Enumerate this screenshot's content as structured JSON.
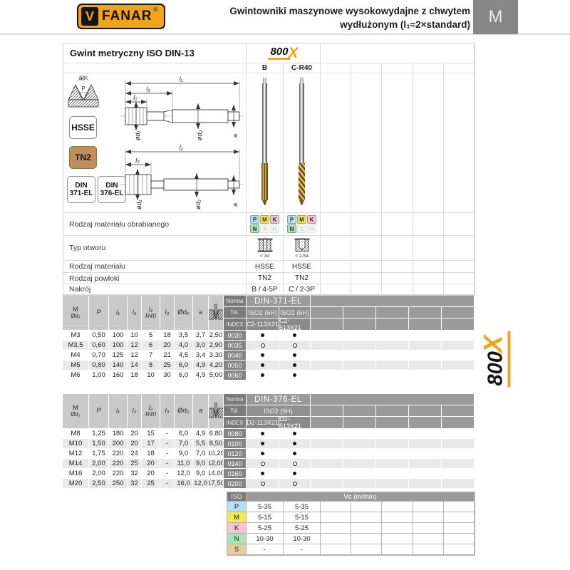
{
  "header": {
    "brand": "FANAR",
    "brand_v": "V",
    "registered": "®",
    "title_line1": "Gwintowniki maszynowe wysokowydajne z chwytem",
    "title_line2": "wydłużonym (l₁≈2×standard)",
    "section_tab": "M"
  },
  "brand_800x": {
    "num": "800",
    "x": "X",
    "accent_color": "#f2a31c"
  },
  "top": {
    "title": "Gwint metryczny ISO DIN-13",
    "col_b": "B",
    "col_c": "C-R40",
    "profile": {
      "angle": "60°",
      "p": "P"
    },
    "left_badges": {
      "material": "HSSE",
      "coating": "TN2",
      "coating_color": "#bf8f5b",
      "din1_l1": "DIN",
      "din1_l2": "371-EL",
      "din2_l1": "DIN",
      "din2_l2": "376-EL"
    },
    "drawing_dims": {
      "l1": "l₁",
      "l2": "l₂",
      "l3": "l₃",
      "d1": "ød₁",
      "d2": "ød₂",
      "a": "a"
    },
    "rows": {
      "material_groups_label": "Rodzaj materiału obrabianego",
      "hole_type_label": "Typ otworu",
      "material_label": "Rodzaj materiału",
      "coating_label": "Rodzaj powłoki",
      "chamfer_label": "Nakrój",
      "material_values": [
        "HSSE",
        "HSSE"
      ],
      "coating_values": [
        "TN2",
        "TN2"
      ],
      "chamfer_values": [
        "B / 4-5P",
        "C / 2-3P"
      ],
      "hole_captions": [
        "< 3d",
        "< 2,5d"
      ]
    },
    "iso_groups": [
      {
        "code": "P",
        "color": "#b5dff2",
        "active": true
      },
      {
        "code": "M",
        "color": "#f5e94e",
        "active": true
      },
      {
        "code": "K",
        "color": "#f7c3da",
        "active": true
      },
      {
        "code": "N",
        "color": "#a9e2b5",
        "active": true
      },
      {
        "code": "S",
        "color": "#f4f4f4",
        "active": false
      },
      {
        "code": "H",
        "color": "#f4f4f4",
        "active": false
      }
    ]
  },
  "spec_labels": {
    "norma": "Norma",
    "tol": "Tol.",
    "index": "INDEX"
  },
  "col_headers": [
    {
      "top": "M",
      "bottom": "Ød₁"
    },
    {
      "top": "P",
      "italic": true
    },
    {
      "top": "l₁",
      "italic": true
    },
    {
      "top": "l₂",
      "italic": true
    },
    {
      "top": "l₂",
      "bottom": "R40",
      "italic": true
    },
    {
      "top": "l₃",
      "italic": true
    },
    {
      "top": "Ød₂"
    },
    {
      "top": "a",
      "italic": true
    },
    {
      "icon": "drill"
    }
  ],
  "tables": [
    {
      "norma": "DIN-371-EL",
      "tol": [
        "ISO2 (6H)",
        "ISO2 (6H)"
      ],
      "codes": [
        "C2-113X21",
        "C2-513X21"
      ],
      "rows": [
        {
          "cells": [
            "M3",
            "0,50",
            "100",
            "10",
            "5",
            "18",
            "3,5",
            "2,7",
            "2,50"
          ],
          "index": "0030",
          "avail": [
            "filled",
            "filled"
          ]
        },
        {
          "cells": [
            "M3,5",
            "0,60",
            "100",
            "12",
            "6",
            "20",
            "4,0",
            "3,0",
            "2,90"
          ],
          "index": "0035",
          "avail": [
            "open",
            "open"
          ]
        },
        {
          "cells": [
            "M4",
            "0,70",
            "125",
            "12",
            "7",
            "21",
            "4,5",
            "3,4",
            "3,30"
          ],
          "index": "0040",
          "avail": [
            "filled",
            "filled"
          ]
        },
        {
          "cells": [
            "M5",
            "0,80",
            "140",
            "14",
            "8",
            "25",
            "6,0",
            "4,9",
            "4,20"
          ],
          "index": "0050",
          "avail": [
            "filled",
            "filled"
          ]
        },
        {
          "cells": [
            "M6",
            "1,00",
            "160",
            "18",
            "10",
            "30",
            "6,0",
            "4,9",
            "5,00"
          ],
          "index": "0060",
          "avail": [
            "filled",
            "filled"
          ]
        }
      ]
    },
    {
      "norma": "DIN-376-EL",
      "tol": [
        "ISO2 (6H)"
      ],
      "codes": [
        "D2-113X21",
        "D2-513X21"
      ],
      "rows": [
        {
          "cells": [
            "M8",
            "1,25",
            "180",
            "20",
            "15",
            "-",
            "6,0",
            "4,9",
            "6,80"
          ],
          "index": "0080",
          "avail": [
            "filled",
            "filled"
          ]
        },
        {
          "cells": [
            "M10",
            "1,50",
            "200",
            "20",
            "17",
            "-",
            "7,0",
            "5,5",
            "8,50"
          ],
          "index": "0100",
          "avail": [
            "filled",
            "filled"
          ]
        },
        {
          "cells": [
            "M12",
            "1,75",
            "220",
            "24",
            "18",
            "-",
            "9,0",
            "7,0",
            "10,20"
          ],
          "index": "0120",
          "avail": [
            "filled",
            "filled"
          ]
        },
        {
          "cells": [
            "M14",
            "2,00",
            "220",
            "25",
            "20",
            "-",
            "11,0",
            "9,0",
            "12,00"
          ],
          "index": "0140",
          "avail": [
            "open",
            "open"
          ]
        },
        {
          "cells": [
            "M16",
            "2,00",
            "220",
            "32",
            "20",
            "-",
            "12,0",
            "9,0",
            "14,00"
          ],
          "index": "0160",
          "avail": [
            "filled",
            "filled"
          ]
        },
        {
          "cells": [
            "M20",
            "2,50",
            "250",
            "32",
            "25",
            "-",
            "16,0",
            "12,0",
            "17,50"
          ],
          "index": "0200",
          "avail": [
            "open",
            "open"
          ]
        }
      ]
    }
  ],
  "vc_table": {
    "iso_label": "ISO",
    "vc_label": "Vc (m/min)",
    "rows": [
      {
        "code": "P",
        "color": "#b5dff2",
        "values": [
          "5-35",
          "5-35"
        ]
      },
      {
        "code": "M",
        "color": "#f5e94e",
        "values": [
          "5-15",
          "5-15"
        ]
      },
      {
        "code": "K",
        "color": "#f7c3da",
        "values": [
          "5-25",
          "5-25"
        ]
      },
      {
        "code": "N",
        "color": "#a9e2b5",
        "values": [
          "10-30",
          "10-30"
        ]
      },
      {
        "code": "S",
        "color": "#e8cda0",
        "values": [
          "-",
          "-"
        ]
      }
    ]
  }
}
